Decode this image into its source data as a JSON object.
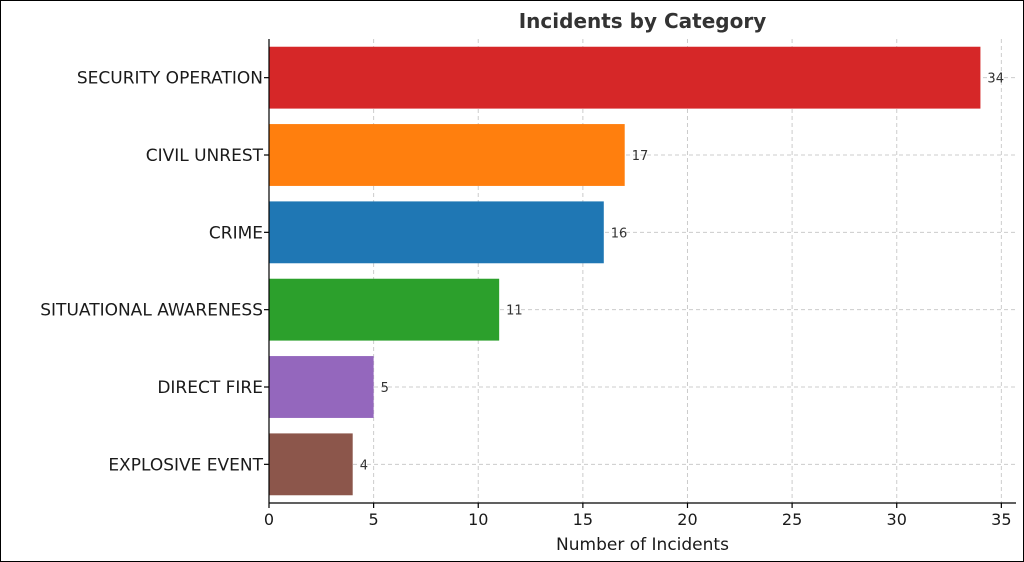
{
  "chart_data": {
    "type": "bar",
    "orientation": "horizontal",
    "title": "Incidents by Category",
    "xlabel": "Number of Incidents",
    "ylabel": "",
    "categories": [
      "SECURITY OPERATION",
      "CIVIL UNREST",
      "CRIME",
      "SITUATIONAL AWARENESS",
      "DIRECT FIRE",
      "EXPLOSIVE EVENT"
    ],
    "values": [
      34,
      17,
      16,
      11,
      5,
      4
    ],
    "colors": [
      "#d62728",
      "#ff7f0e",
      "#1f77b4",
      "#2ca02c",
      "#9467bd",
      "#8c564b"
    ],
    "xlim": [
      0,
      35.7
    ],
    "xticks": [
      0,
      5,
      10,
      15,
      20,
      25,
      30,
      35
    ],
    "grid": true,
    "data_labels": true
  }
}
